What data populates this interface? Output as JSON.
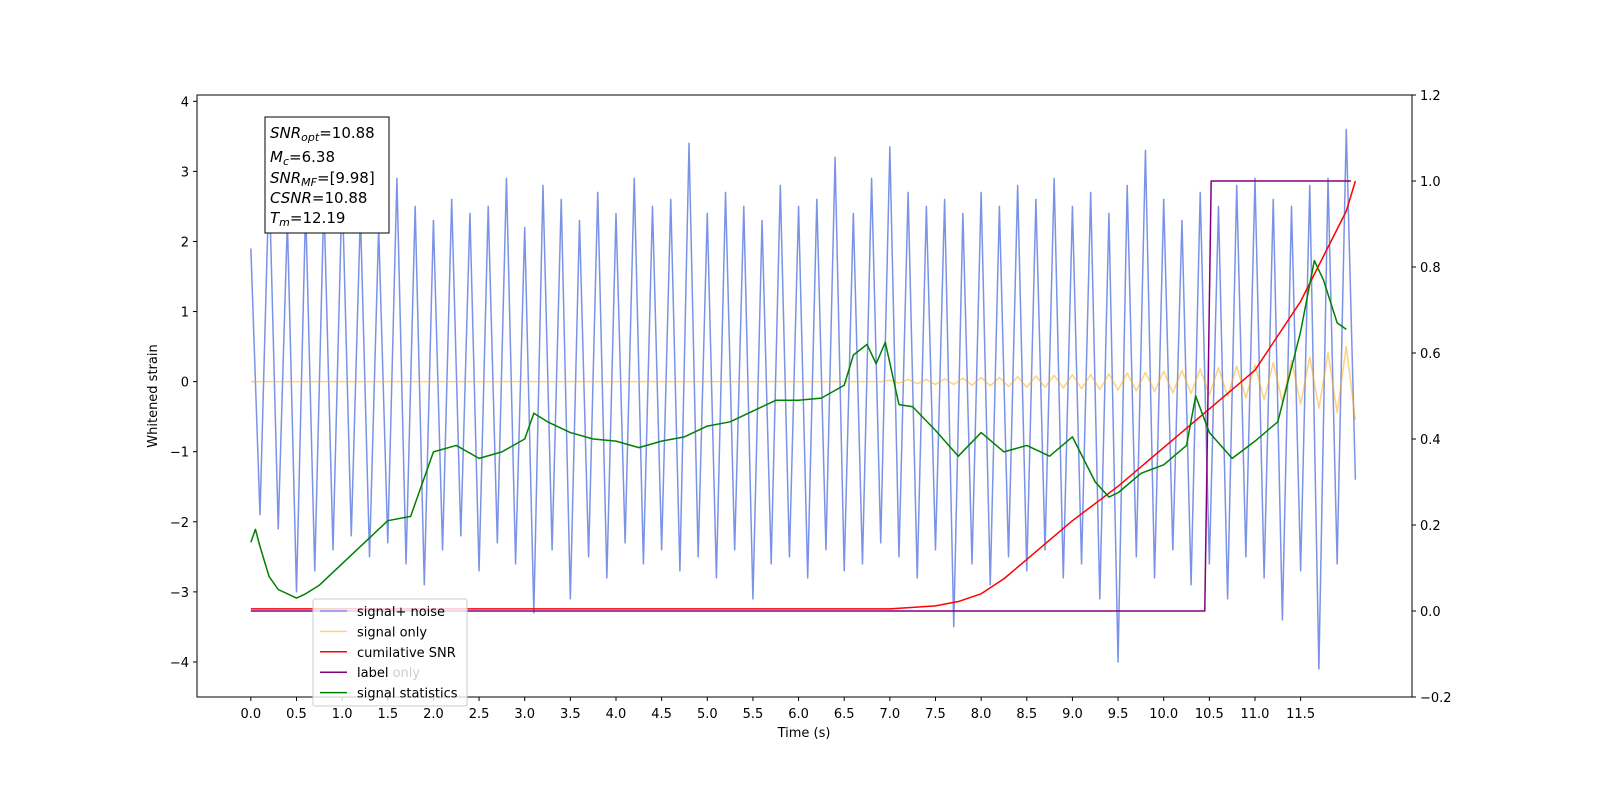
{
  "chart_data": {
    "type": "line",
    "x_label": "Time (s)",
    "y_label": "Whitened strain",
    "xlim": [
      -0.59,
      12.72
    ],
    "ylim": [
      -4.5,
      4.09
    ],
    "y2lim": [
      -0.2,
      1.2
    ],
    "xticks": [
      {
        "value": 0,
        "label": "0.0"
      },
      0.5,
      {
        "value": 1,
        "label": "1.0"
      },
      1.5,
      {
        "value": 2,
        "label": "2.0"
      },
      2.5,
      {
        "value": 3,
        "label": "3.0"
      },
      3.5,
      {
        "value": 4,
        "label": "4.0"
      },
      4.5,
      {
        "value": 5,
        "label": "5.0"
      },
      5.5,
      {
        "value": 6,
        "label": "6.0"
      },
      6.5,
      {
        "value": 7,
        "label": "7.0"
      },
      7.5,
      {
        "value": 8,
        "label": "8.0"
      },
      8.5,
      {
        "value": 9,
        "label": "9.0"
      },
      9.5,
      {
        "value": 10,
        "label": "10.0"
      },
      10.5,
      {
        "value": 11,
        "label": "11.0"
      },
      11.5
    ],
    "yticks": [
      {
        "value": -4,
        "label": "−4"
      },
      {
        "value": -3,
        "label": "−3"
      },
      {
        "value": -2,
        "label": "−2"
      },
      {
        "value": -1,
        "label": "−1"
      },
      0,
      1,
      2,
      3,
      4
    ],
    "y2ticks": [
      {
        "value": -0.2,
        "label": "−0.2"
      },
      {
        "value": 0,
        "label": "0.0"
      },
      0.2,
      0.4,
      0.6,
      0.8,
      {
        "value": 1,
        "label": "1.0"
      },
      1.2
    ],
    "annotation": [
      {
        "symbol": "SNR",
        "subscript": "opt",
        "text": "=10.88"
      },
      {
        "symbol": "M",
        "subscript": "c",
        "text": "=6.38"
      },
      {
        "symbol": "SNR",
        "subscript": "MF",
        "text": "=[9.98]"
      },
      {
        "symbol": "CSNR",
        "text": "=10.88"
      },
      {
        "symbol": "T",
        "subscript": "m",
        "text": "=12.19"
      }
    ],
    "hidden_legend_text": "label only",
    "x": [
      0,
      0.1,
      0.2,
      0.3,
      0.4,
      0.5,
      0.6,
      0.7,
      0.8,
      0.9,
      1.0,
      1.1,
      1.2,
      1.3,
      1.4,
      1.5,
      1.6,
      1.7,
      1.8,
      1.9,
      2.0,
      2.1,
      2.2,
      2.3,
      2.4,
      2.5,
      2.6,
      2.7,
      2.8,
      2.9,
      3.0,
      3.1,
      3.2,
      3.3,
      3.4,
      3.5,
      3.6,
      3.7,
      3.8,
      3.9,
      4.0,
      4.1,
      4.2,
      4.3,
      4.4,
      4.5,
      4.6,
      4.7,
      4.8,
      4.9,
      5.0,
      5.1,
      5.2,
      5.3,
      5.4,
      5.5,
      5.6,
      5.7,
      5.8,
      5.9,
      6.0,
      6.1,
      6.2,
      6.3,
      6.4,
      6.5,
      6.6,
      6.7,
      6.8,
      6.9,
      7.0,
      7.1,
      7.2,
      7.3,
      7.4,
      7.5,
      7.6,
      7.7,
      7.8,
      7.9,
      8.0,
      8.1,
      8.2,
      8.3,
      8.4,
      8.5,
      8.6,
      8.7,
      8.8,
      8.9,
      9.0,
      9.1,
      9.2,
      9.3,
      9.4,
      9.5,
      9.6,
      9.7,
      9.8,
      9.9,
      10.0,
      10.1,
      10.2,
      10.3,
      10.4,
      10.5,
      10.6,
      10.7,
      10.8,
      10.9,
      11.0,
      11.1,
      11.2,
      11.3,
      11.4,
      11.5,
      11.6,
      11.7,
      11.8,
      11.9,
      12.0,
      12.1
    ],
    "series": [
      {
        "name": "signal+ noise",
        "color": "#7b93e6",
        "values": [
          1.9,
          -1.9,
          2.9,
          -2.1,
          2.3,
          -3.0,
          2.5,
          -2.7,
          2.6,
          -2.4,
          2.8,
          -2.2,
          2.4,
          -2.5,
          2.2,
          -2.3,
          2.9,
          -2.6,
          2.5,
          -2.9,
          2.3,
          -2.4,
          2.6,
          -2.2,
          2.4,
          -2.7,
          2.5,
          -2.3,
          2.9,
          -2.6,
          2.2,
          -3.3,
          2.8,
          -2.4,
          2.6,
          -3.1,
          2.3,
          -2.5,
          2.7,
          -2.8,
          2.4,
          -2.3,
          2.9,
          -2.6,
          2.5,
          -2.4,
          2.6,
          -2.7,
          3.4,
          -2.5,
          2.4,
          -2.8,
          2.7,
          -2.4,
          2.5,
          -3.1,
          2.3,
          -2.6,
          2.8,
          -2.5,
          2.5,
          -2.8,
          2.6,
          -2.4,
          3.2,
          -2.7,
          2.4,
          -2.6,
          2.9,
          -2.3,
          3.35,
          -2.5,
          2.7,
          -2.8,
          2.5,
          -2.4,
          2.6,
          -3.5,
          2.4,
          -2.6,
          2.7,
          -2.9,
          2.5,
          -2.5,
          2.8,
          -2.7,
          2.6,
          -2.4,
          2.9,
          -2.8,
          2.5,
          -2.6,
          2.7,
          -3.1,
          2.4,
          -4.0,
          2.8,
          -2.5,
          3.3,
          -2.8,
          2.6,
          -2.4,
          2.3,
          -2.9,
          2.7,
          -2.6,
          2.5,
          -3.1,
          2.8,
          -2.5,
          2.9,
          -2.8,
          2.6,
          -3.4,
          2.5,
          -2.7,
          2.8,
          -4.1,
          2.9,
          -2.6,
          3.6,
          -1.4
        ]
      },
      {
        "name": "signal only",
        "color": "#ffa500",
        "values": [
          0,
          0,
          0,
          0,
          0,
          0,
          0,
          0,
          0,
          0,
          0,
          0,
          0,
          0,
          0,
          0,
          0,
          0,
          0,
          0,
          0,
          0,
          0,
          0,
          0,
          0,
          0,
          0,
          0,
          0,
          0,
          0,
          0,
          0,
          0,
          0,
          0,
          0,
          0,
          0,
          0,
          0,
          0,
          0,
          0,
          0,
          0,
          0,
          0,
          0,
          0,
          0,
          0,
          0,
          0,
          0,
          0,
          0,
          0,
          0,
          0,
          0,
          0,
          0,
          0,
          0,
          0,
          0,
          0,
          0,
          0.02,
          -0.02,
          0.03,
          -0.03,
          0.03,
          -0.04,
          0.04,
          -0.04,
          0.05,
          -0.05,
          0.06,
          -0.06,
          0.06,
          -0.07,
          0.07,
          -0.08,
          0.08,
          -0.08,
          0.09,
          -0.09,
          0.1,
          -0.1,
          0.1,
          -0.11,
          0.11,
          -0.12,
          0.12,
          -0.13,
          0.13,
          -0.14,
          0.15,
          -0.16,
          0.16,
          -0.17,
          0.18,
          -0.19,
          0.2,
          -0.21,
          0.22,
          -0.23,
          0.24,
          -0.26,
          0.27,
          -0.29,
          0.3,
          -0.32,
          0.35,
          -0.38,
          0.41,
          -0.44,
          0.5,
          -0.55
        ]
      },
      {
        "name": "cumilative SNR",
        "color": "#ff0000",
        "axis": "y2",
        "x": [
          0,
          7.0,
          7.5,
          7.75,
          8.0,
          8.25,
          8.5,
          9.0,
          9.5,
          10.0,
          10.5,
          11.0,
          11.5,
          12.0,
          12.1
        ],
        "values": [
          0.005,
          0.005,
          0.012,
          0.022,
          0.04,
          0.075,
          0.12,
          0.21,
          0.29,
          0.38,
          0.47,
          0.56,
          0.72,
          0.93,
          1.0
        ]
      },
      {
        "name": "label",
        "color": "#800080",
        "axis": "y2",
        "x": [
          0,
          10.45,
          10.52,
          12.05
        ],
        "values": [
          0,
          0,
          1,
          1
        ]
      },
      {
        "name": "signal statistics",
        "color": "#008000",
        "axis": "y2",
        "x": [
          0,
          0.05,
          0.1,
          0.2,
          0.3,
          0.5,
          0.6,
          0.75,
          1.0,
          1.25,
          1.5,
          1.75,
          2.0,
          2.25,
          2.5,
          2.75,
          3.0,
          3.1,
          3.25,
          3.5,
          3.75,
          4.0,
          4.25,
          4.5,
          4.75,
          5.0,
          5.25,
          5.5,
          5.75,
          6.0,
          6.25,
          6.5,
          6.6,
          6.75,
          6.85,
          6.95,
          7.1,
          7.25,
          7.5,
          7.75,
          8.0,
          8.25,
          8.5,
          8.75,
          9.0,
          9.25,
          9.4,
          9.5,
          9.75,
          10.0,
          10.25,
          10.35,
          10.5,
          10.75,
          11.0,
          11.25,
          11.5,
          11.65,
          11.75,
          11.9,
          12.0
        ],
        "values": [
          0.16,
          0.19,
          0.15,
          0.08,
          0.05,
          0.03,
          0.04,
          0.06,
          0.11,
          0.16,
          0.21,
          0.22,
          0.37,
          0.385,
          0.355,
          0.37,
          0.4,
          0.46,
          0.44,
          0.415,
          0.4,
          0.395,
          0.38,
          0.395,
          0.405,
          0.43,
          0.44,
          0.465,
          0.49,
          0.49,
          0.495,
          0.525,
          0.595,
          0.62,
          0.575,
          0.625,
          0.48,
          0.475,
          0.42,
          0.36,
          0.415,
          0.37,
          0.385,
          0.36,
          0.405,
          0.3,
          0.265,
          0.275,
          0.32,
          0.34,
          0.385,
          0.5,
          0.415,
          0.355,
          0.395,
          0.44,
          0.65,
          0.815,
          0.77,
          0.67,
          0.655
        ]
      }
    ]
  }
}
